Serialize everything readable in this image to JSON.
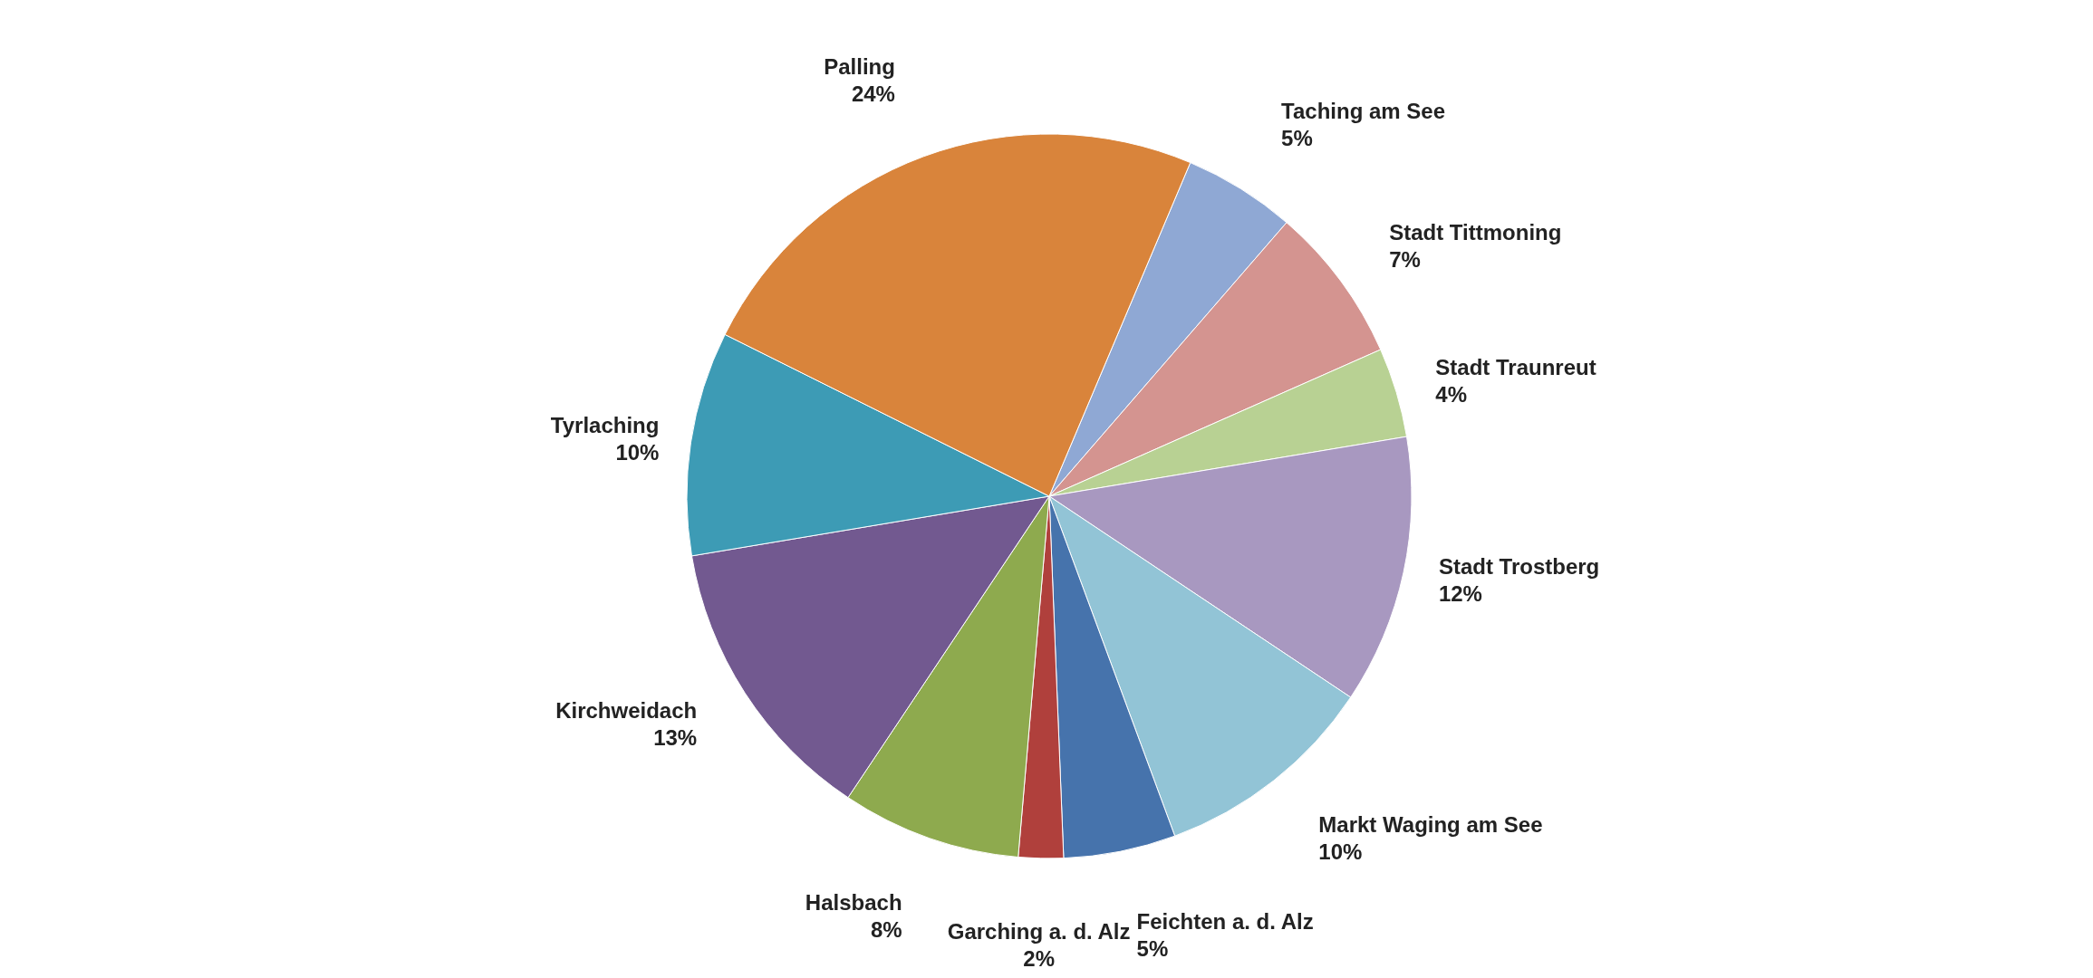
{
  "chart_data": {
    "type": "pie",
    "categories": [
      "Taching am See",
      "Stadt Tittmoning",
      "Stadt Traunreut",
      "Stadt Trostberg",
      "Markt Waging am See",
      "Feichten a. d. Alz",
      "Garching a. d. Alz",
      "Halsbach",
      "Kirchweidach",
      "Tyrlaching",
      "Palling"
    ],
    "values": [
      5,
      7,
      4,
      12,
      10,
      5,
      2,
      8,
      13,
      10,
      24
    ],
    "value_labels": [
      "5%",
      "7%",
      "4%",
      "12%",
      "10%",
      "5%",
      "2%",
      "8%",
      "13%",
      "10%",
      "24%"
    ],
    "colors": [
      "#8fa8d4",
      "#d49490",
      "#b8d193",
      "#a898c0",
      "#92c4d6",
      "#4673ac",
      "#b0403c",
      "#8eaa4e",
      "#725990",
      "#3d9bb5",
      "#d9843b"
    ]
  }
}
